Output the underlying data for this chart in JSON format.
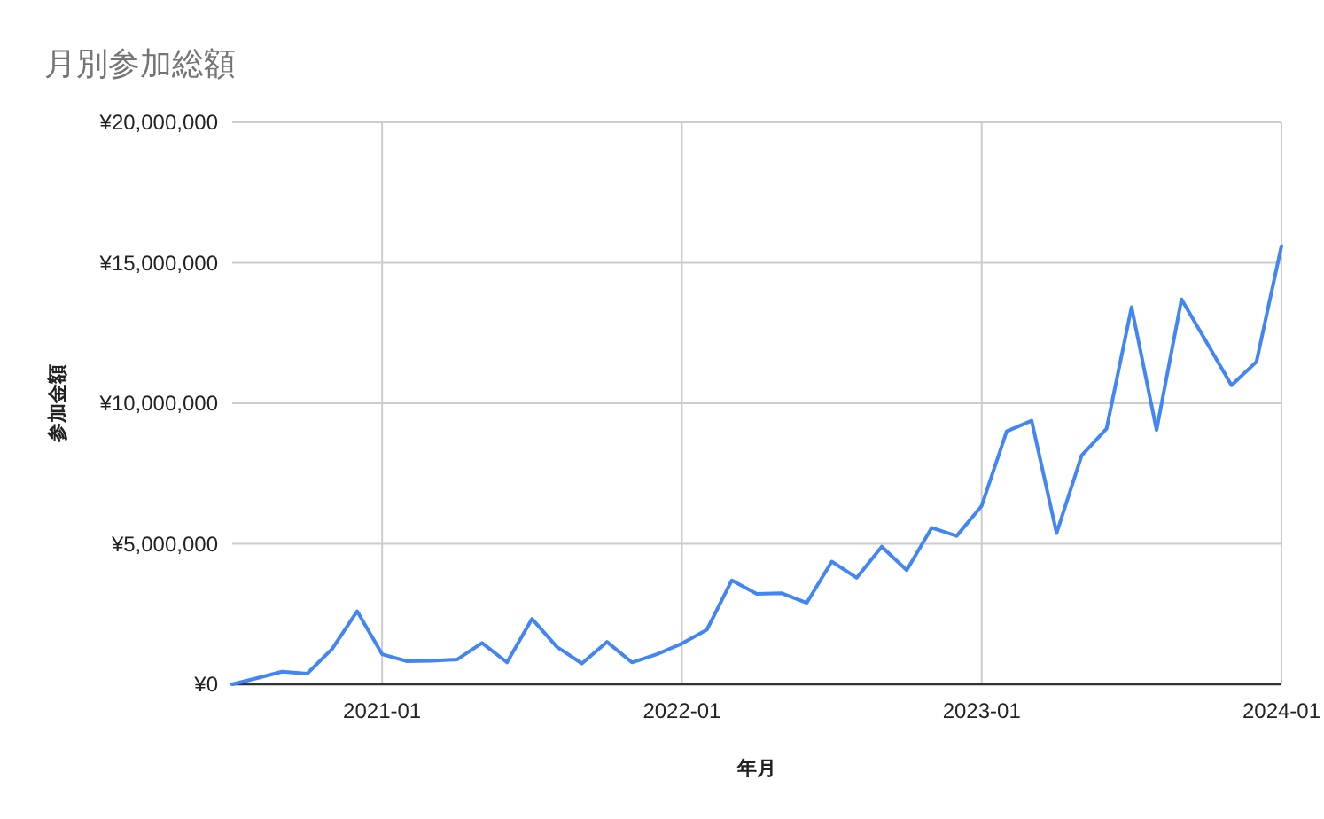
{
  "chart_data": {
    "type": "line",
    "title": "月別参加総額",
    "xlabel": "年月",
    "ylabel": "参加金額",
    "x": [
      "2020-07",
      "2020-08",
      "2020-09",
      "2020-10",
      "2020-11",
      "2020-12",
      "2021-01",
      "2021-02",
      "2021-03",
      "2021-04",
      "2021-05",
      "2021-06",
      "2021-07",
      "2021-08",
      "2021-09",
      "2021-10",
      "2021-11",
      "2021-12",
      "2022-01",
      "2022-02",
      "2022-03",
      "2022-04",
      "2022-05",
      "2022-06",
      "2022-07",
      "2022-08",
      "2022-09",
      "2022-10",
      "2022-11",
      "2022-12",
      "2023-01",
      "2023-02",
      "2023-03",
      "2023-04",
      "2023-05",
      "2023-06",
      "2023-07",
      "2023-08",
      "2023-09",
      "2023-10",
      "2023-11",
      "2023-12",
      "2024-01"
    ],
    "series": [
      {
        "color": "#4285f4",
        "values": [
          0,
          220000,
          450000,
          380000,
          1260000,
          2600000,
          1070000,
          820000,
          840000,
          880000,
          1470000,
          780000,
          2330000,
          1330000,
          740000,
          1510000,
          780000,
          1070000,
          1450000,
          1940000,
          3700000,
          3220000,
          3240000,
          2900000,
          4370000,
          3790000,
          4900000,
          4060000,
          5570000,
          5280000,
          6350000,
          9000000,
          9380000,
          5380000,
          8140000,
          9100000,
          13420000,
          9050000,
          13700000,
          12180000,
          10640000,
          11480000,
          15600000
        ]
      }
    ],
    "xlim": [
      "2020-07",
      "2024-01"
    ],
    "xticks": [
      "2021-01",
      "2022-01",
      "2023-01",
      "2024-01"
    ],
    "ylim": [
      0,
      20000000
    ],
    "yticks": [
      {
        "value": 0,
        "label": "¥0"
      },
      {
        "value": 5000000,
        "label": "¥5,000,000"
      },
      {
        "value": 10000000,
        "label": "¥10,000,000"
      },
      {
        "value": 15000000,
        "label": "¥15,000,000"
      },
      {
        "value": 20000000,
        "label": "¥20,000,000"
      }
    ],
    "grid": true,
    "legend": false,
    "marker": "none",
    "line_style": "solid"
  }
}
